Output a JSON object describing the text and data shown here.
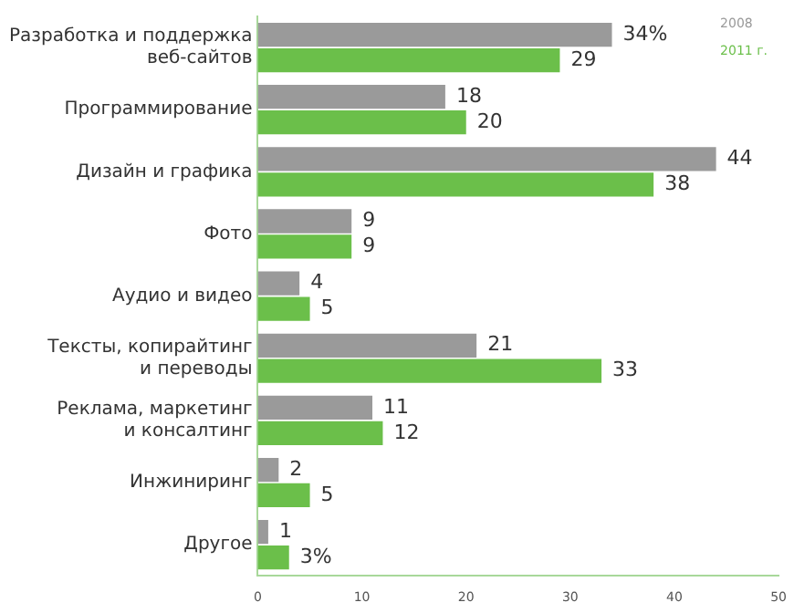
{
  "chart_data": {
    "type": "bar",
    "orientation": "horizontal",
    "categories": [
      "Разработка и поддержка\nвеб-сайтов",
      "Программирование",
      "Дизайн и графика",
      "Фото",
      "Аудио и видео",
      "Тексты, копирайтинг\nи переводы",
      "Реклама, маркетинг\nи консалтинг",
      "Инжиниринг",
      "Другое"
    ],
    "series": [
      {
        "name": "2008",
        "color": "#9a9a9a",
        "values": [
          34,
          18,
          44,
          9,
          4,
          21,
          11,
          2,
          1
        ],
        "value_labels": [
          "34%",
          "18",
          "44",
          "9",
          "4",
          "21",
          "11",
          "2",
          "1"
        ]
      },
      {
        "name": "2011 г.",
        "color": "#6bbf4a",
        "values": [
          29,
          20,
          38,
          9,
          5,
          33,
          12,
          5,
          3
        ],
        "value_labels": [
          "29",
          "20",
          "38",
          "9",
          "5",
          "33",
          "12",
          "5",
          "3%"
        ]
      }
    ],
    "xlim": [
      0,
      50
    ],
    "xticks": [
      0,
      10,
      20,
      30,
      40,
      50
    ],
    "grid": false,
    "legend": "top right"
  }
}
